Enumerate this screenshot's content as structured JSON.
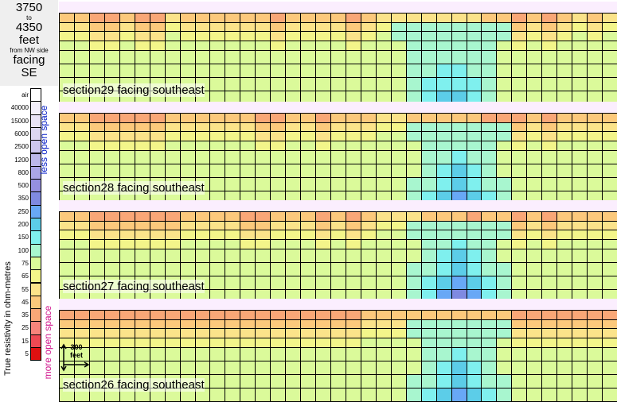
{
  "title": {
    "line1": "3750",
    "line2": "to",
    "line3": "4350",
    "line4": "feet",
    "line5": "from NW side",
    "line6": "facing",
    "line7": "SE"
  },
  "legend": {
    "ticks": [
      "air",
      "40000",
      "15000",
      "6000",
      "2500",
      "1200",
      "800",
      "500",
      "350",
      "250",
      "200",
      "150",
      "100",
      "75",
      "65",
      "55",
      "45",
      "35",
      "25",
      "15",
      "5"
    ],
    "colors": [
      "#ffffff",
      "#f4f0fb",
      "#e9e2f6",
      "#ddd6f1",
      "#cdc7ee",
      "#bcb8ea",
      "#aaa6e6",
      "#9590df",
      "#7f8ae1",
      "#68a8f6",
      "#5ccde8",
      "#7ff0ee",
      "#a8f6cf",
      "#dbfa9a",
      "#f3f58a",
      "#fbe38a",
      "#fcc97c",
      "#f9a777",
      "#f7847b",
      "#ee4953",
      "#e01010"
    ],
    "ylabel": "True resistivity in ohm-metres",
    "less_label": "less open space",
    "more_label": "more open space"
  },
  "scale_bar": {
    "line1": "300",
    "line2": "feet"
  },
  "chart_data": [
    {
      "type": "heatmap",
      "title": "section29 facing southeast",
      "columns": 37,
      "rows": 8,
      "ridge_values": [
        45,
        45,
        35,
        35,
        45,
        35,
        35,
        55,
        45,
        45,
        45,
        45,
        45,
        45,
        35,
        45,
        45,
        45,
        45,
        35,
        45,
        55,
        55,
        55,
        55,
        55,
        55,
        55,
        45,
        45,
        35,
        45,
        35,
        45,
        55,
        45,
        55
      ],
      "core": {
        "x_from": 22,
        "x_to": 29,
        "value": 200
      }
    },
    {
      "type": "heatmap",
      "title": "section28 facing southeast",
      "columns": 37,
      "rows": 8,
      "ridge_values": [
        45,
        45,
        35,
        35,
        35,
        35,
        35,
        45,
        45,
        45,
        45,
        45,
        45,
        35,
        35,
        45,
        45,
        35,
        45,
        45,
        45,
        55,
        55,
        45,
        45,
        45,
        45,
        45,
        35,
        35,
        35,
        45,
        35,
        45,
        45,
        45,
        45
      ],
      "core": {
        "x_from": 23,
        "x_to": 29,
        "value": 250
      }
    },
    {
      "type": "heatmap",
      "title": "section27 facing southeast",
      "columns": 37,
      "rows": 8,
      "ridge_values": [
        45,
        45,
        35,
        35,
        35,
        35,
        35,
        35,
        45,
        45,
        45,
        45,
        35,
        35,
        45,
        45,
        45,
        35,
        45,
        35,
        45,
        55,
        55,
        55,
        45,
        45,
        45,
        35,
        45,
        45,
        35,
        45,
        35,
        45,
        45,
        45,
        45
      ],
      "core": {
        "x_from": 23,
        "x_to": 29,
        "value": 350
      }
    },
    {
      "type": "heatmap",
      "title": "section26 facing southeast",
      "columns": 37,
      "rows": 8,
      "ridge_values": [
        35,
        35,
        35,
        35,
        35,
        35,
        35,
        35,
        35,
        35,
        35,
        35,
        35,
        35,
        35,
        35,
        35,
        35,
        35,
        35,
        45,
        45,
        45,
        45,
        45,
        45,
        45,
        45,
        45,
        45,
        35,
        35,
        35,
        35,
        35,
        35,
        35
      ],
      "core": {
        "x_from": 23,
        "x_to": 29,
        "value": 250
      }
    }
  ]
}
